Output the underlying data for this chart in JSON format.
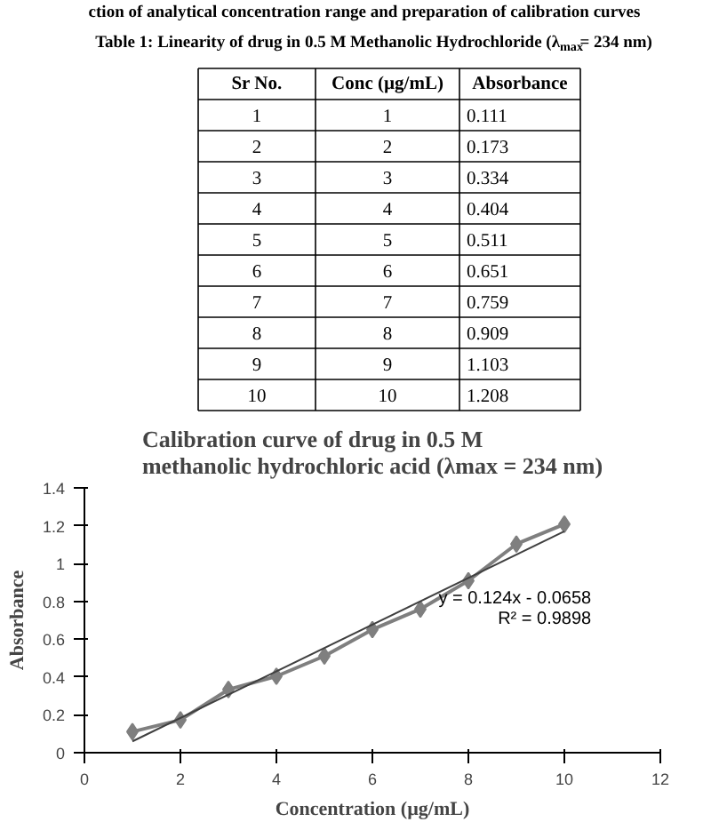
{
  "chart_data": {
    "type": "line",
    "title": "Calibration curve of drug in 0.5 M methanolic hydrochloric acid (λmax = 234 nm)",
    "xlabel": "Concentration (µg/mL)",
    "ylabel": "Absorbance",
    "annotations": [
      "ction of analytical concentration range and preparation of calibration curves",
      "Table 1: Linearity of drug in 0.5 M Methanolic Hydrochloride (λ$_{max}$= 234 nm)",
      "Sr No.",
      "Conc (µg/mL)",
      "Absorbance",
      "1",
      "2",
      "3",
      "4",
      "5",
      "6",
      "7",
      "8",
      "9",
      "10",
      "y = 0.124x - 0.0658",
      "R² = 0.9898"
    ],
    "x": [
      1,
      2,
      3,
      4,
      5,
      6,
      7,
      8,
      9,
      10
    ],
    "series": [
      {
        "color": "#7f7f7f",
        "values": [
          0.111,
          0.173,
          0.334,
          0.404,
          0.511,
          0.651,
          0.759,
          0.909,
          1.103,
          1.208
        ],
        "marker": "diamond"
      },
      {
        "type": "line",
        "color": "#404040",
        "x": [
          1,
          10
        ],
        "values": [
          0.06,
          1.17
        ],
        "marker": "none"
      }
    ],
    "value_labels": [
      "0.111",
      "0.173",
      "0.334",
      "0.404",
      "0.511",
      "0.651",
      "0.759",
      "0.909",
      "1.103",
      "1.208"
    ],
    "xlim": [
      0,
      12
    ],
    "xticks": [
      0,
      2,
      4,
      6,
      8,
      10,
      12
    ],
    "ylim": [
      0,
      1.4
    ],
    "yticks": [
      0,
      {
        "value": 0.2,
        "label": "0.2"
      },
      {
        "value": 0.4,
        "label": "0.4"
      },
      {
        "value": 0.6,
        "label": "0.6"
      },
      {
        "value": 0.8,
        "label": "0.8"
      },
      1,
      {
        "value": 1.2,
        "label": "1.2"
      },
      {
        "value": 1.4,
        "label": "1.4"
      }
    ],
    "grid": false
  }
}
